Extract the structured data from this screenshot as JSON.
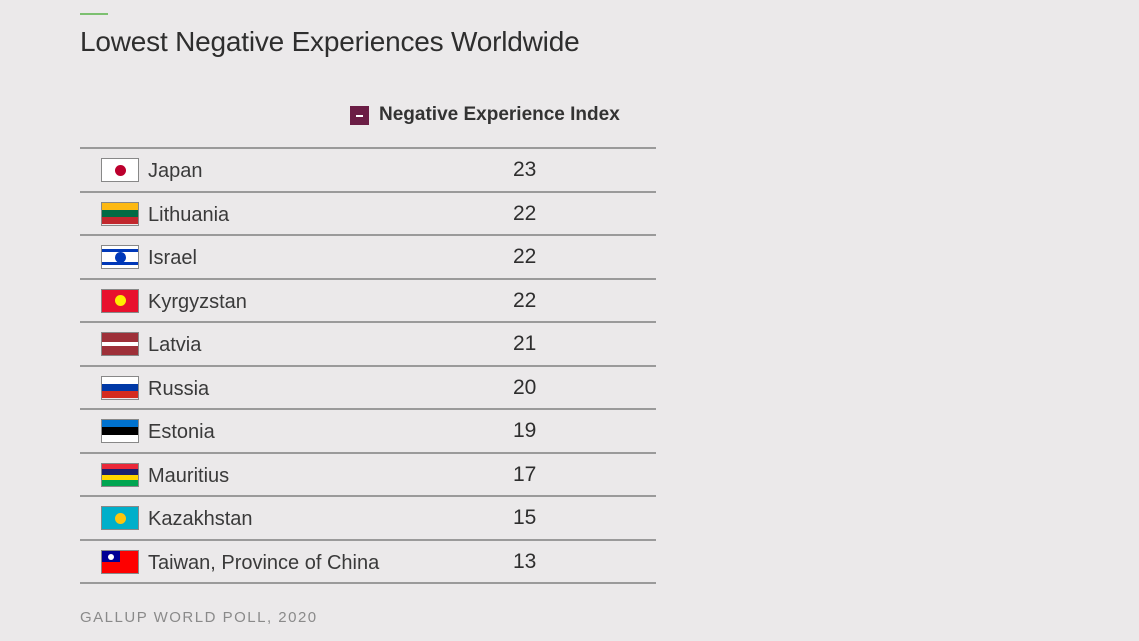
{
  "title": "Lowest Negative Experiences Worldwide",
  "source": "GALLUP WORLD POLL, 2020",
  "chart_data": {
    "type": "table",
    "title": "Lowest Negative Experiences Worldwide",
    "legend": "Negative Experience Index",
    "legend_color": "#6b1d45",
    "rows": [
      {
        "country": "Japan",
        "value": 23,
        "flag": {
          "stripes": [
            "#ffffff"
          ],
          "emblem": "#bc002d"
        }
      },
      {
        "country": "Lithuania",
        "value": 22,
        "flag": {
          "stripes": [
            "#fdb913",
            "#006a44",
            "#c1272d"
          ]
        }
      },
      {
        "country": "Israel",
        "value": 22,
        "flag": {
          "stripes": [
            "#ffffff",
            "#0038b8",
            "#ffffff",
            "#ffffff",
            "#ffffff",
            "#0038b8",
            "#ffffff"
          ],
          "emblem": "#0038b8"
        }
      },
      {
        "country": "Kyrgyzstan",
        "value": 22,
        "flag": {
          "stripes": [
            "#e8112d"
          ],
          "emblem": "#ffef00"
        }
      },
      {
        "country": "Latvia",
        "value": 21,
        "flag": {
          "stripes": [
            "#9e3039",
            "#9e3039",
            "#ffffff",
            "#9e3039",
            "#9e3039"
          ]
        }
      },
      {
        "country": "Russia",
        "value": 20,
        "flag": {
          "stripes": [
            "#ffffff",
            "#0039a6",
            "#d52b1e"
          ]
        }
      },
      {
        "country": "Estonia",
        "value": 19,
        "flag": {
          "stripes": [
            "#0072ce",
            "#000000",
            "#ffffff"
          ]
        }
      },
      {
        "country": "Mauritius",
        "value": 17,
        "flag": {
          "stripes": [
            "#ea2839",
            "#1a206d",
            "#ffd500",
            "#00a551"
          ]
        }
      },
      {
        "country": "Kazakhstan",
        "value": 15,
        "flag": {
          "stripes": [
            "#00afca"
          ],
          "emblem": "#fec50c"
        }
      },
      {
        "country": "Taiwan, Province of China",
        "value": 13,
        "flag": {
          "stripes": [
            "#fe0000"
          ],
          "canton": "#000095"
        }
      }
    ]
  }
}
